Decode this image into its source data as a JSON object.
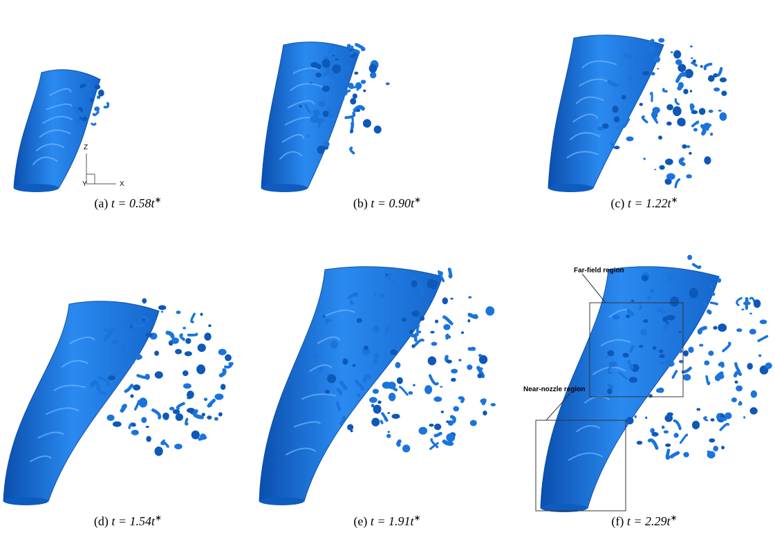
{
  "panels": [
    {
      "label": "(a)",
      "expr": "t = 0.58t",
      "sup": "∗"
    },
    {
      "label": "(b)",
      "expr": "t = 0.90t",
      "sup": "∗"
    },
    {
      "label": "(c)",
      "expr": "t = 1.22t",
      "sup": "∗"
    },
    {
      "label": "(d)",
      "expr": "t = 1.54t",
      "sup": "∗"
    },
    {
      "label": "(e)",
      "expr": "t = 1.91t",
      "sup": "∗"
    },
    {
      "label": "(f)",
      "expr": "t = 2.29t",
      "sup": "∗"
    }
  ],
  "axes": {
    "z": "Z",
    "x": "X",
    "y": "Y"
  },
  "annotations": {
    "far_field": "Far-field region",
    "near_nozzle": "Near-nozzle region"
  }
}
